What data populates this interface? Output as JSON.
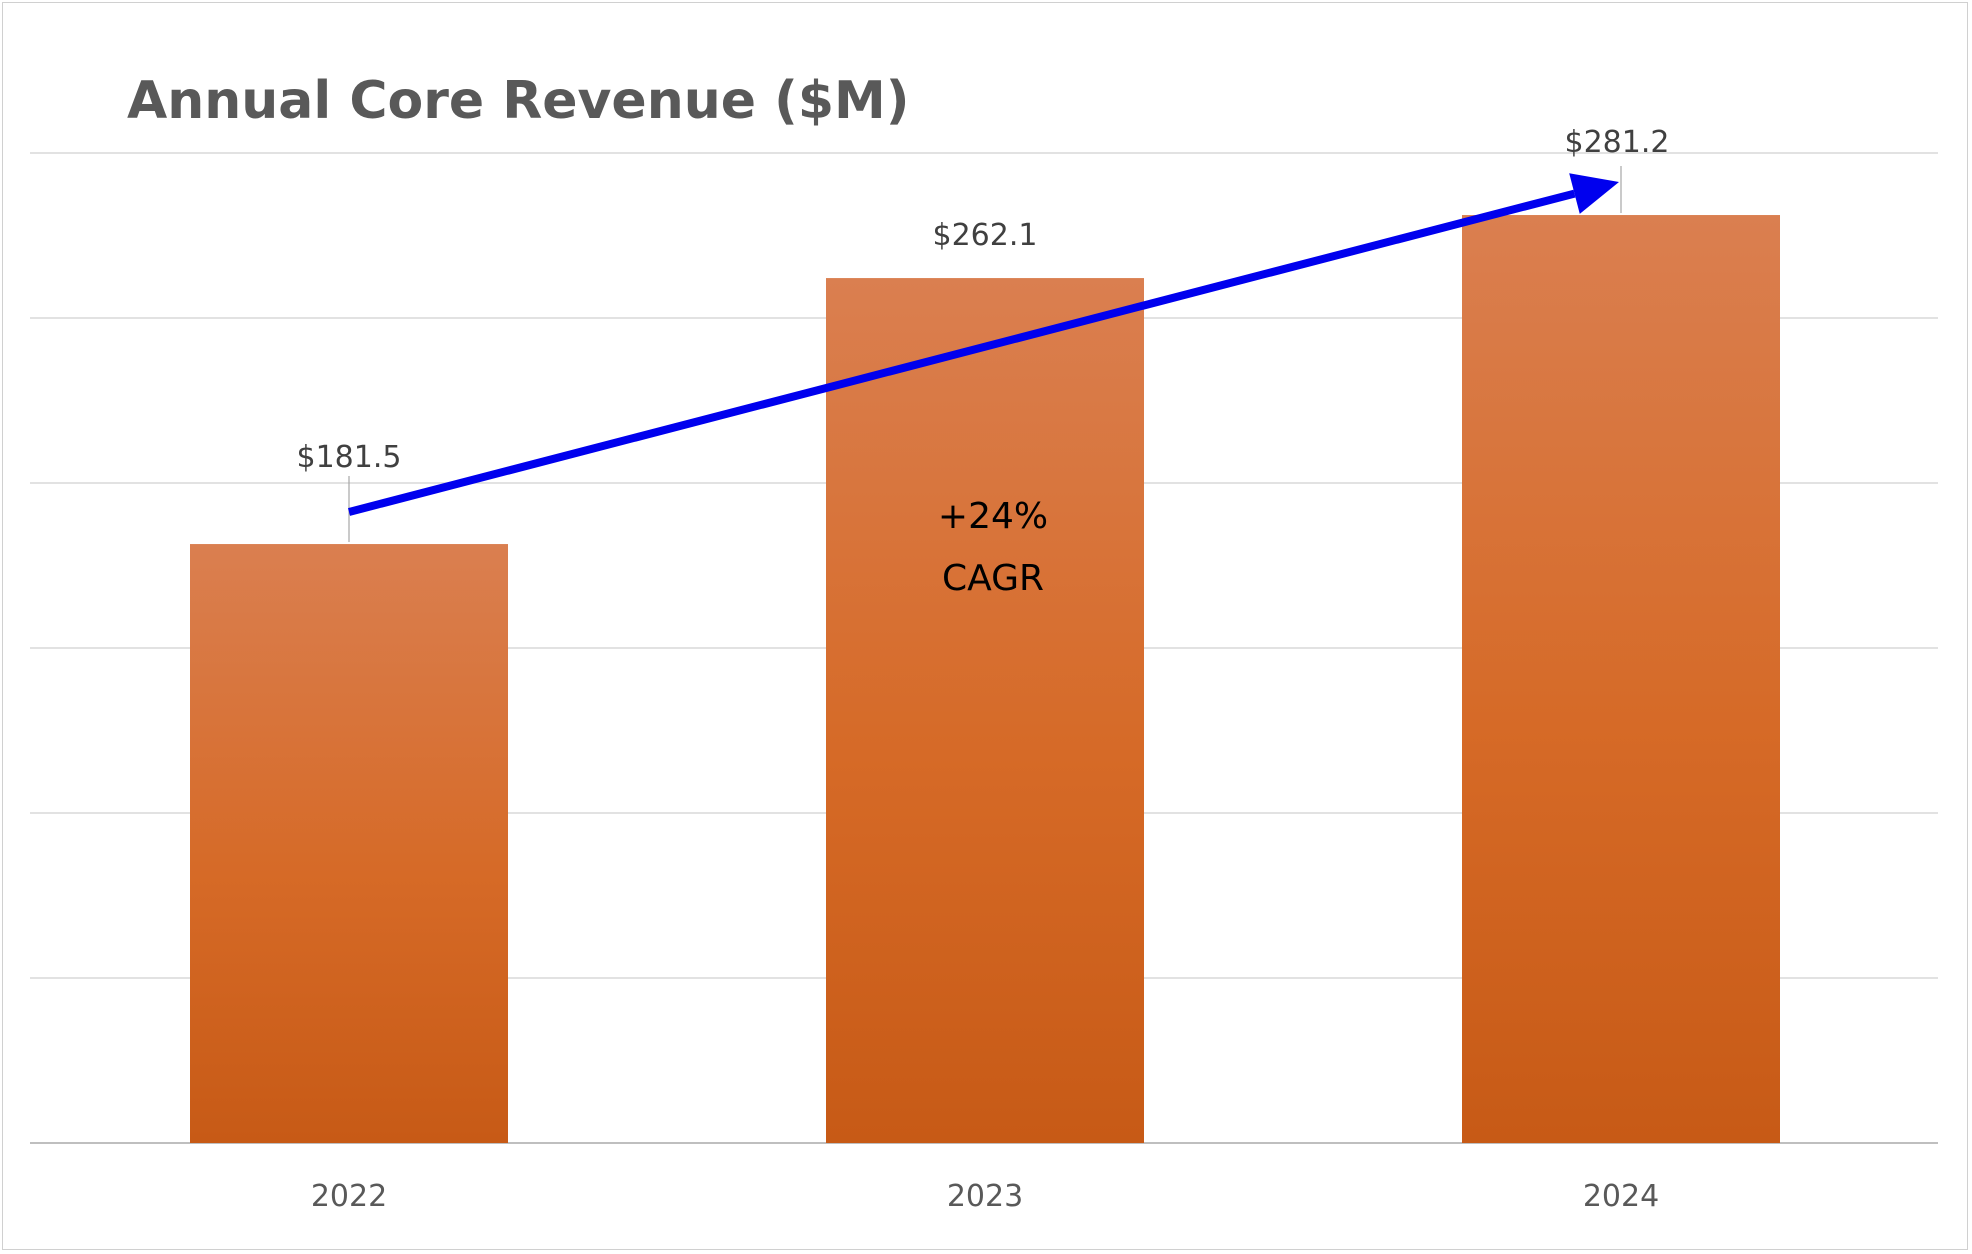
{
  "chart_data": {
    "type": "bar",
    "title": "Annual Core Revenue ($M)",
    "categories": [
      "2022",
      "2023",
      "2024"
    ],
    "values": [
      181.5,
      262.1,
      281.2
    ],
    "data_labels": [
      "$181.5",
      "$262.1",
      "$281.2"
    ],
    "xlabel": "",
    "ylabel": "",
    "ylim": [
      0,
      300
    ],
    "ytick_step": 50,
    "grid": true,
    "legend": "none",
    "annotation": {
      "type": "arrow",
      "from_category": "2022",
      "to_category": "2024",
      "label_line1": "+24%",
      "label_line2": "CAGR"
    },
    "colors": {
      "bar_top": "#da7f50",
      "bar_bottom": "#c75a16",
      "arrow": "#0000ee",
      "gridline": "#d9d9d9"
    }
  }
}
